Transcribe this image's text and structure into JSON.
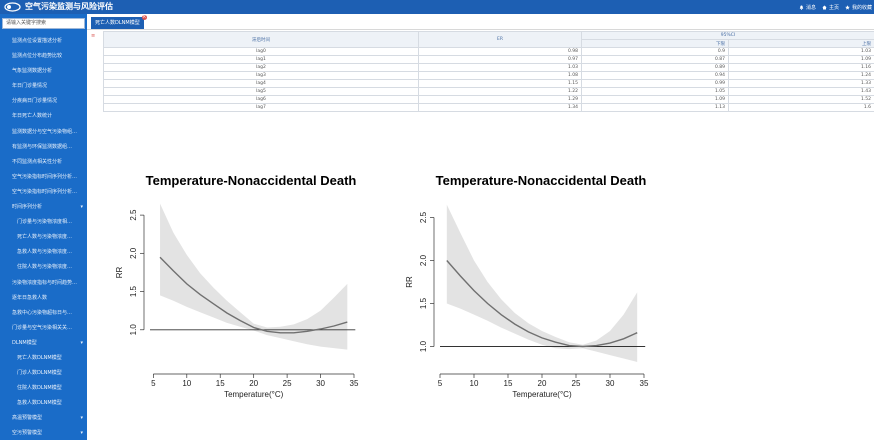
{
  "header": {
    "title": "空气污染监测与风险评估",
    "links": [
      {
        "icon": "bell-icon",
        "label": "消息"
      },
      {
        "icon": "home-icon",
        "label": "主页"
      },
      {
        "icon": "star-icon",
        "label": "我的收藏"
      }
    ]
  },
  "sidebar": {
    "search_placeholder": "请输入关键字搜索",
    "items": [
      {
        "label": "监测点位设置描述分析",
        "type": "item"
      },
      {
        "label": "监测点位分布趋势比较",
        "type": "item"
      },
      {
        "label": "气象监测数据分析",
        "type": "item"
      },
      {
        "label": "年日门诊量情况",
        "type": "item"
      },
      {
        "label": "分疾病日门诊量情况",
        "type": "item"
      },
      {
        "label": "年日死亡人数统计",
        "type": "item"
      },
      {
        "label": "监测数据分与空气污染物组…",
        "type": "item"
      },
      {
        "label": "有监测与环保监测数据组…",
        "type": "item"
      },
      {
        "label": "不同监测点相关性分析",
        "type": "item"
      },
      {
        "label": "空气污染指标时间序列分析…",
        "type": "item"
      },
      {
        "label": "空气污染指标时间序列分析…",
        "type": "item"
      },
      {
        "label": "时间序列分析",
        "type": "group",
        "arrow": "▾"
      },
      {
        "label": "门诊量与污染物浓度相…",
        "type": "sub"
      },
      {
        "label": "死亡人数与污染物浓度…",
        "type": "sub"
      },
      {
        "label": "急救人数与污染物浓度…",
        "type": "sub"
      },
      {
        "label": "住院人数与污染物浓度…",
        "type": "sub"
      },
      {
        "label": "污染物浓度指标与时间趋势…",
        "type": "item"
      },
      {
        "label": "逐年日急救人数",
        "type": "item"
      },
      {
        "label": "急救中心污染物超标日与…",
        "type": "item"
      },
      {
        "label": "门诊量与空气污染相关关…",
        "type": "item"
      },
      {
        "label": "DLNM模型",
        "type": "group",
        "arrow": "▾"
      },
      {
        "label": "死亡人数DLNM模型",
        "type": "sub"
      },
      {
        "label": "门诊人数DLNM模型",
        "type": "sub"
      },
      {
        "label": "住院人数DLNM模型",
        "type": "sub"
      },
      {
        "label": "急救人数DLNM模型",
        "type": "sub"
      },
      {
        "label": "高温预警模型",
        "type": "group",
        "arrow": "▾"
      },
      {
        "label": "空污预警模型",
        "type": "group",
        "arrow": "▾"
      }
    ]
  },
  "tab": {
    "active_label": "死亡人数DLNM模型",
    "close_glyph": "×"
  },
  "side_marker": "≡",
  "table": {
    "headers": {
      "time": "滞后时间",
      "er": "ER",
      "ci": "95%CI",
      "lower": "下限",
      "upper": "上限"
    },
    "rows": [
      {
        "lag": "lag0",
        "er": "0.98",
        "lower": "0.9",
        "upper": "1.03"
      },
      {
        "lag": "lag1",
        "er": "0.97",
        "lower": "0.87",
        "upper": "1.09"
      },
      {
        "lag": "lag2",
        "er": "1.03",
        "lower": "0.89",
        "upper": "1.16"
      },
      {
        "lag": "lag3",
        "er": "1.08",
        "lower": "0.94",
        "upper": "1.24"
      },
      {
        "lag": "lag4",
        "er": "1.15",
        "lower": "0.99",
        "upper": "1.33"
      },
      {
        "lag": "lag5",
        "er": "1.22",
        "lower": "1.05",
        "upper": "1.43"
      },
      {
        "lag": "lag6",
        "er": "1.29",
        "lower": "1.09",
        "upper": "1.52"
      },
      {
        "lag": "lag7",
        "er": "1.34",
        "lower": "1.13",
        "upper": "1.6"
      }
    ]
  },
  "chart_data": [
    {
      "type": "line",
      "title": "Temperature-Nonaccidental Death",
      "xlabel": "Temperature(°C)",
      "ylabel": "RR",
      "xlim": [
        4.5,
        35
      ],
      "ylim": [
        0.5,
        2.75
      ],
      "xticks": [
        5,
        10,
        15,
        20,
        25,
        30,
        35
      ],
      "yticks": [
        1.0,
        1.5,
        2.0,
        2.5
      ],
      "ytick_labels": [
        "1.0",
        "1.5",
        "2.0",
        "2.5"
      ],
      "reference_line": 1.0,
      "series": [
        {
          "x": [
            6,
            8,
            10,
            12,
            14,
            16,
            18,
            20,
            22,
            24,
            26,
            28,
            30,
            32,
            34
          ],
          "y": [
            1.95,
            1.77,
            1.6,
            1.46,
            1.34,
            1.22,
            1.12,
            1.03,
            0.98,
            0.96,
            0.96,
            0.98,
            1.01,
            1.05,
            1.1
          ],
          "lower": [
            1.45,
            1.38,
            1.3,
            1.23,
            1.16,
            1.09,
            1.04,
            0.99,
            0.93,
            0.89,
            0.85,
            0.81,
            0.78,
            0.76,
            0.74
          ],
          "upper": [
            2.65,
            2.27,
            1.98,
            1.74,
            1.55,
            1.38,
            1.23,
            1.08,
            1.03,
            1.04,
            1.07,
            1.14,
            1.25,
            1.42,
            1.6
          ]
        }
      ],
      "colors": {
        "line": "#707070",
        "band": "#e3e3e3",
        "ref": "#333333"
      }
    },
    {
      "type": "line",
      "title": "Temperature-Nonaccidental Death",
      "xlabel": "Temperature(°C)",
      "ylabel": "RR",
      "xlim": [
        5,
        35
      ],
      "ylim": [
        0.75,
        2.75
      ],
      "xticks": [
        5,
        10,
        15,
        20,
        25,
        30,
        35
      ],
      "yticks": [
        1.0,
        1.5,
        2.0,
        2.5
      ],
      "ytick_labels": [
        "1.0",
        "1.5",
        "2.0",
        "2.5"
      ],
      "reference_line": 1.0,
      "series": [
        {
          "x": [
            6,
            8,
            10,
            12,
            14,
            16,
            18,
            20,
            22,
            24,
            26,
            28,
            30,
            32,
            34
          ],
          "y": [
            2.0,
            1.82,
            1.65,
            1.5,
            1.37,
            1.26,
            1.17,
            1.1,
            1.05,
            1.01,
            1.0,
            1.01,
            1.04,
            1.09,
            1.16
          ],
          "lower": [
            1.5,
            1.44,
            1.37,
            1.3,
            1.22,
            1.15,
            1.08,
            1.02,
            0.98,
            0.97,
            0.98,
            0.94,
            0.9,
            0.86,
            0.82
          ],
          "upper": [
            2.65,
            2.32,
            2.0,
            1.75,
            1.55,
            1.39,
            1.27,
            1.18,
            1.11,
            1.05,
            1.02,
            1.07,
            1.18,
            1.37,
            1.63
          ]
        }
      ],
      "colors": {
        "line": "#707070",
        "band": "#e3e3e3",
        "ref": "#333333"
      }
    }
  ]
}
